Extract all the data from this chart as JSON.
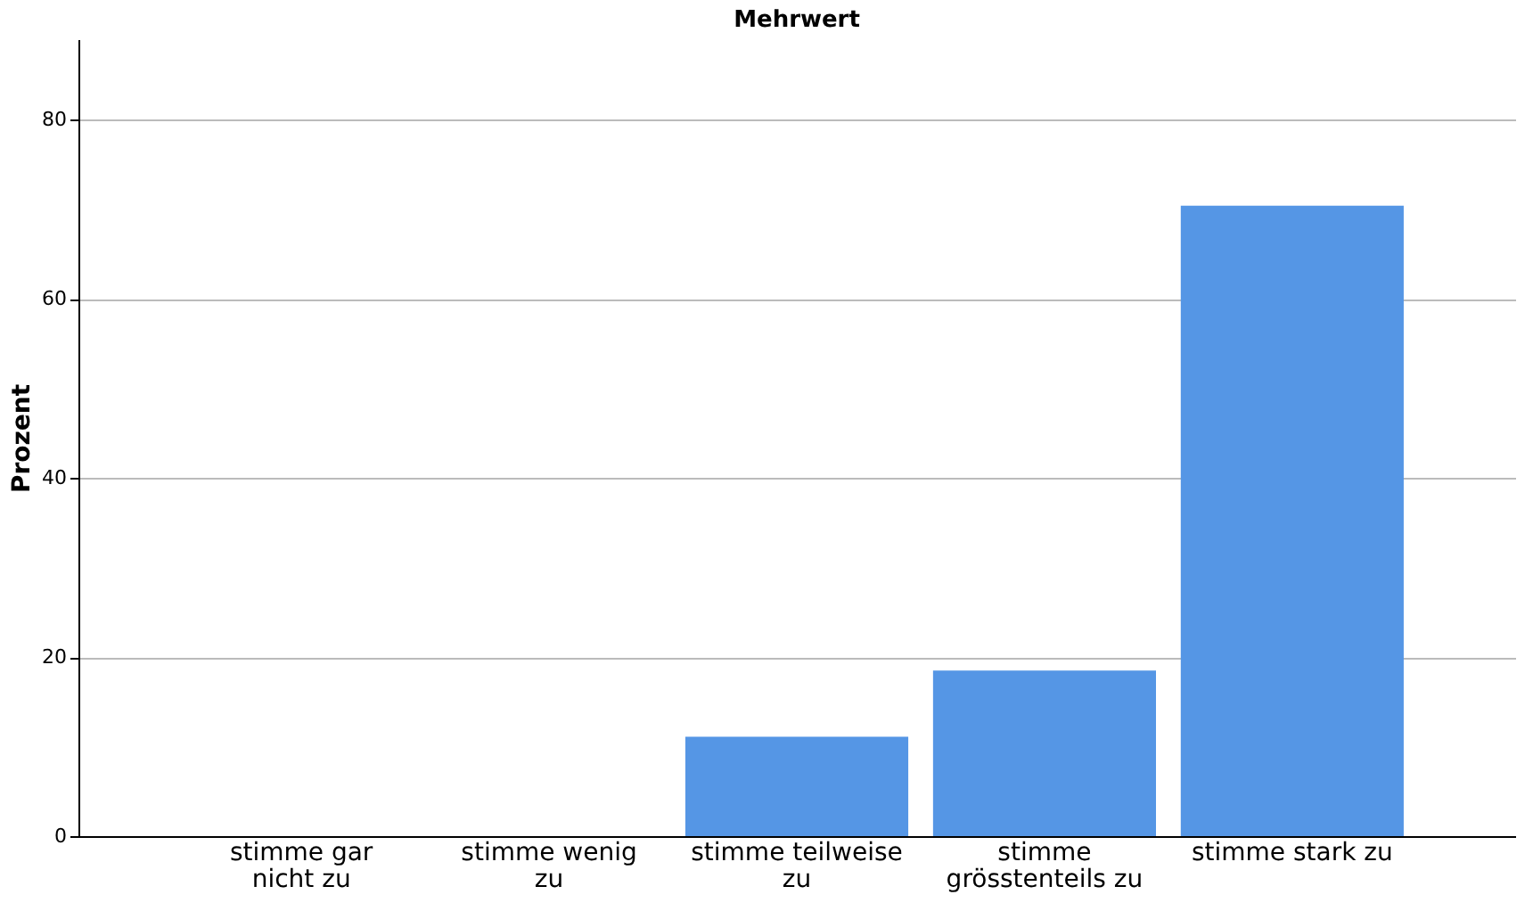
{
  "chart_data": {
    "type": "bar",
    "title": "Mehrwert",
    "ylabel": "Prozent",
    "categories": [
      "stimme gar\nnicht zu",
      "stimme wenig\nzu",
      "stimme teilweise\nzu",
      "stimme\ngrösstenteils zu",
      "stimme stark zu"
    ],
    "values": [
      0,
      0,
      11.1,
      18.5,
      70.4
    ],
    "color": "#5596e5",
    "ylim": [
      0,
      89
    ],
    "yticks": [
      0,
      20,
      40,
      60,
      80
    ],
    "grid": "y"
  }
}
